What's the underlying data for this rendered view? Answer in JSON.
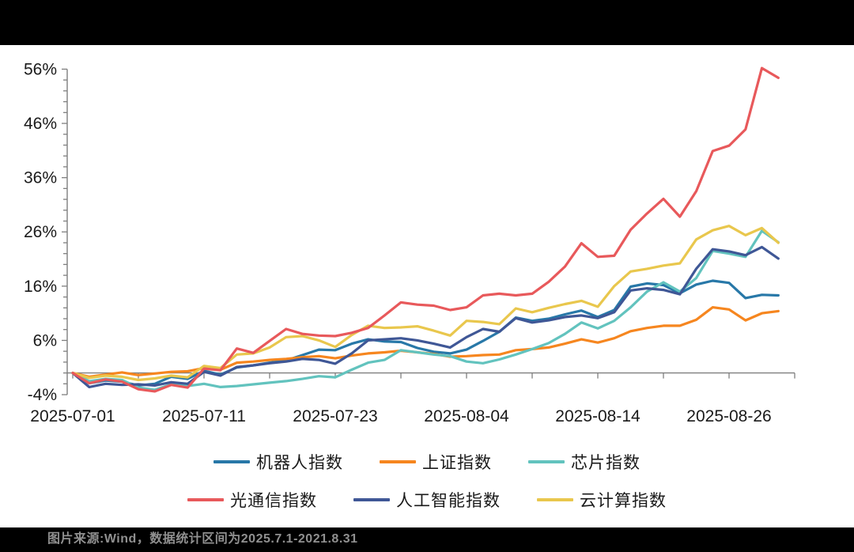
{
  "footer": {
    "source_note": "图片来源:Wind，数据统计区间为2025.7.1-2021.8.31"
  },
  "chart_data": {
    "type": "line",
    "title": "",
    "xlabel": "",
    "ylabel": "",
    "y_unit": "%",
    "ylim": [
      -4,
      57
    ],
    "y_ticks": [
      -4,
      6,
      16,
      26,
      36,
      46,
      56
    ],
    "y_minor_step": 2,
    "grid": false,
    "legend_position": "bottom",
    "n_points": 44,
    "x_tick_labels": [
      "2025-07-01",
      "2025-07-11",
      "2025-07-23",
      "2025-08-04",
      "2025-08-14",
      "2025-08-26"
    ],
    "x_tick_indices": [
      0,
      8,
      16,
      24,
      32,
      40
    ],
    "x_minor_tick_every": 4,
    "axis_color": "#7f7f7f",
    "label_color": "#1a1a1a",
    "series": [
      {
        "id": "robot",
        "name": "机器人指数",
        "color": "#2878A8",
        "values": [
          0,
          -1.9,
          -1.4,
          -1.6,
          -2.3,
          -2.0,
          -0.7,
          -1.1,
          0.4,
          -0.3,
          1.0,
          1.4,
          1.9,
          2.3,
          3.3,
          4.3,
          4.2,
          5.4,
          6.2,
          5.8,
          5.7,
          4.6,
          3.9,
          3.6,
          4.3,
          5.9,
          7.6,
          10.2,
          9.6,
          10.0,
          10.8,
          11.5,
          10.3,
          11.6,
          15.9,
          16.5,
          16.2,
          14.7,
          16.3,
          17.0,
          16.6,
          13.8,
          14.4,
          14.3
        ]
      },
      {
        "id": "sse",
        "name": "上证指数",
        "color": "#F6861F",
        "values": [
          0,
          -0.7,
          -0.3,
          0.1,
          -0.4,
          -0.1,
          0.2,
          0.3,
          0.9,
          0.6,
          1.9,
          2.1,
          2.4,
          2.6,
          2.9,
          3.1,
          2.7,
          3.2,
          3.6,
          3.8,
          4.1,
          3.8,
          3.5,
          3.0,
          3.1,
          3.3,
          3.4,
          4.2,
          4.4,
          4.7,
          5.4,
          6.2,
          5.6,
          6.4,
          7.7,
          8.3,
          8.7,
          8.7,
          9.8,
          12.1,
          11.7,
          9.7,
          11.0,
          11.4
        ]
      },
      {
        "id": "chip",
        "name": "芯片指数",
        "color": "#62C3BE",
        "values": [
          0,
          -1.5,
          -1.1,
          -1.3,
          -2.7,
          -3.1,
          -2.1,
          -2.4,
          -2.0,
          -2.6,
          -2.4,
          -2.1,
          -1.8,
          -1.5,
          -1.1,
          -0.6,
          -0.8,
          0.6,
          1.9,
          2.4,
          4.2,
          3.8,
          3.4,
          3.1,
          2.1,
          1.8,
          2.5,
          3.4,
          4.4,
          5.5,
          7.2,
          9.3,
          8.2,
          9.6,
          12.1,
          15.0,
          16.7,
          15.0,
          17.5,
          22.5,
          22.0,
          21.4,
          26.2,
          24.1
        ]
      },
      {
        "id": "optical",
        "name": "光通信指数",
        "color": "#E8595B",
        "values": [
          0,
          -1.9,
          -1.2,
          -1.6,
          -3.0,
          -3.4,
          -2.2,
          -2.7,
          0.8,
          0.5,
          4.5,
          3.7,
          5.9,
          8.1,
          7.2,
          6.9,
          6.8,
          7.4,
          8.3,
          10.6,
          13.0,
          12.6,
          12.4,
          11.6,
          12.1,
          14.3,
          14.6,
          14.3,
          14.6,
          16.8,
          19.6,
          23.9,
          21.4,
          21.6,
          26.4,
          29.4,
          32.1,
          28.8,
          33.5,
          40.9,
          41.9,
          44.9,
          56.2,
          54.4
        ]
      },
      {
        "id": "ai",
        "name": "人工智能指数",
        "color": "#3F5796",
        "values": [
          0,
          -2.6,
          -2.0,
          -2.2,
          -2.1,
          -2.3,
          -1.7,
          -2.0,
          0.2,
          -0.5,
          1.1,
          1.4,
          1.8,
          2.1,
          2.6,
          2.4,
          1.7,
          3.6,
          6.0,
          6.2,
          6.4,
          6.0,
          5.4,
          4.7,
          6.6,
          8.1,
          7.6,
          10.1,
          9.3,
          9.7,
          10.3,
          10.6,
          10.1,
          11.2,
          15.2,
          15.6,
          15.3,
          14.5,
          19.2,
          22.8,
          22.4,
          21.7,
          23.2,
          21.1
        ]
      },
      {
        "id": "cloud",
        "name": "云计算指数",
        "color": "#E9C74D",
        "values": [
          0,
          -0.9,
          -0.5,
          -0.7,
          -1.3,
          -1.0,
          -0.5,
          -0.8,
          1.3,
          0.9,
          3.4,
          3.6,
          4.7,
          6.6,
          6.8,
          6.0,
          4.8,
          7.0,
          8.7,
          8.3,
          8.4,
          8.6,
          7.8,
          6.9,
          9.6,
          9.4,
          9.0,
          11.9,
          11.2,
          12.0,
          12.7,
          13.3,
          12.2,
          16.0,
          18.7,
          19.2,
          19.8,
          20.2,
          24.6,
          26.3,
          27.1,
          25.4,
          26.7,
          24.0
        ]
      }
    ],
    "draw_order": [
      "robot",
      "sse",
      "chip",
      "ai",
      "cloud",
      "optical"
    ],
    "legend_rows": [
      [
        "robot",
        "sse",
        "chip"
      ],
      [
        "optical",
        "ai",
        "cloud"
      ]
    ]
  }
}
